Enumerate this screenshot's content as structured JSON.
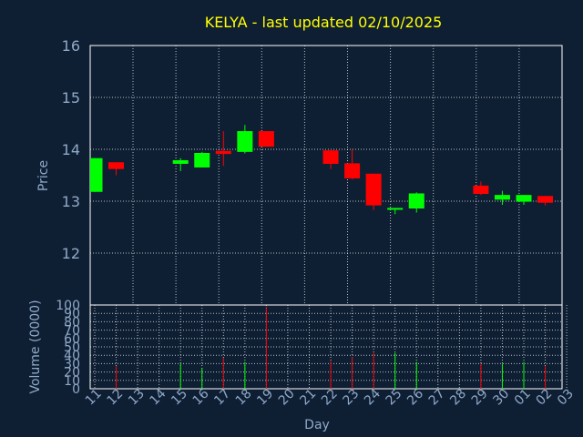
{
  "colors": {
    "background": "#0f1f33",
    "title": "#ffff00",
    "axis_text": "#8fa9c8",
    "frame": "#ffffff",
    "grid": "#ffffff",
    "up": "#00ff00",
    "down": "#ff0000"
  },
  "chart_data": [
    {
      "type": "candlestick",
      "title": "KELYA - last updated 02/10/2025",
      "ylabel": "Price",
      "ylim": [
        11,
        16
      ],
      "yticks": [
        "12",
        "13",
        "14",
        "15",
        "16"
      ],
      "grid": true,
      "candles": [
        {
          "day": "11",
          "open": 13.18,
          "high": 13.83,
          "low": 13.18,
          "close": 13.83
        },
        {
          "day": "12",
          "open": 13.75,
          "high": 13.75,
          "low": 13.5,
          "close": 13.62
        },
        {
          "day": "15",
          "open": 13.72,
          "high": 13.83,
          "low": 13.58,
          "close": 13.79
        },
        {
          "day": "16",
          "open": 13.65,
          "high": 13.95,
          "low": 13.65,
          "close": 13.93
        },
        {
          "day": "17",
          "open": 13.97,
          "high": 14.35,
          "low": 13.68,
          "close": 13.91
        },
        {
          "day": "18",
          "open": 13.95,
          "high": 14.47,
          "low": 13.92,
          "close": 14.35
        },
        {
          "day": "19",
          "open": 14.35,
          "high": 14.35,
          "low": 14.05,
          "close": 14.05
        },
        {
          "day": "22",
          "open": 13.98,
          "high": 13.98,
          "low": 13.62,
          "close": 13.72
        },
        {
          "day": "23",
          "open": 13.73,
          "high": 14.0,
          "low": 13.42,
          "close": 13.44
        },
        {
          "day": "24",
          "open": 13.53,
          "high": 13.53,
          "low": 12.83,
          "close": 12.92
        },
        {
          "day": "25",
          "open": 12.84,
          "high": 12.87,
          "low": 12.75,
          "close": 12.87
        },
        {
          "day": "26",
          "open": 12.86,
          "high": 13.17,
          "low": 12.78,
          "close": 13.15
        },
        {
          "day": "29",
          "open": 13.3,
          "high": 13.38,
          "low": 13.12,
          "close": 13.14
        },
        {
          "day": "30",
          "open": 13.03,
          "high": 13.2,
          "low": 12.93,
          "close": 13.12
        },
        {
          "day": "01",
          "open": 12.99,
          "high": 13.12,
          "low": 12.93,
          "close": 13.12
        },
        {
          "day": "02",
          "open": 13.1,
          "high": 13.1,
          "low": 12.92,
          "close": 12.97
        }
      ]
    },
    {
      "type": "bar",
      "xlabel": "Day",
      "ylabel": "Volume (0000)",
      "ylim": [
        0,
        100
      ],
      "yticks": [
        "0",
        "10",
        "20",
        "30",
        "40",
        "50",
        "60",
        "70",
        "80",
        "90",
        "100"
      ],
      "grid": true,
      "categories": [
        "11",
        "12",
        "13",
        "14",
        "15",
        "16",
        "17",
        "18",
        "19",
        "20",
        "21",
        "22",
        "23",
        "24",
        "25",
        "26",
        "27",
        "28",
        "29",
        "30",
        "01",
        "02",
        "03"
      ],
      "bars": [
        {
          "day": "12",
          "value": 27,
          "direction": "down"
        },
        {
          "day": "15",
          "value": 30,
          "direction": "up"
        },
        {
          "day": "16",
          "value": 25,
          "direction": "up"
        },
        {
          "day": "17",
          "value": 37,
          "direction": "down"
        },
        {
          "day": "18",
          "value": 32,
          "direction": "up"
        },
        {
          "day": "19",
          "value": 98,
          "direction": "down"
        },
        {
          "day": "22",
          "value": 33,
          "direction": "down"
        },
        {
          "day": "23",
          "value": 38,
          "direction": "down"
        },
        {
          "day": "24",
          "value": 43,
          "direction": "down"
        },
        {
          "day": "25",
          "value": 43,
          "direction": "up"
        },
        {
          "day": "26",
          "value": 32,
          "direction": "up"
        },
        {
          "day": "29",
          "value": 30,
          "direction": "down"
        },
        {
          "day": "30",
          "value": 30,
          "direction": "up"
        },
        {
          "day": "01",
          "value": 32,
          "direction": "up"
        },
        {
          "day": "02",
          "value": 27,
          "direction": "down"
        }
      ]
    }
  ]
}
